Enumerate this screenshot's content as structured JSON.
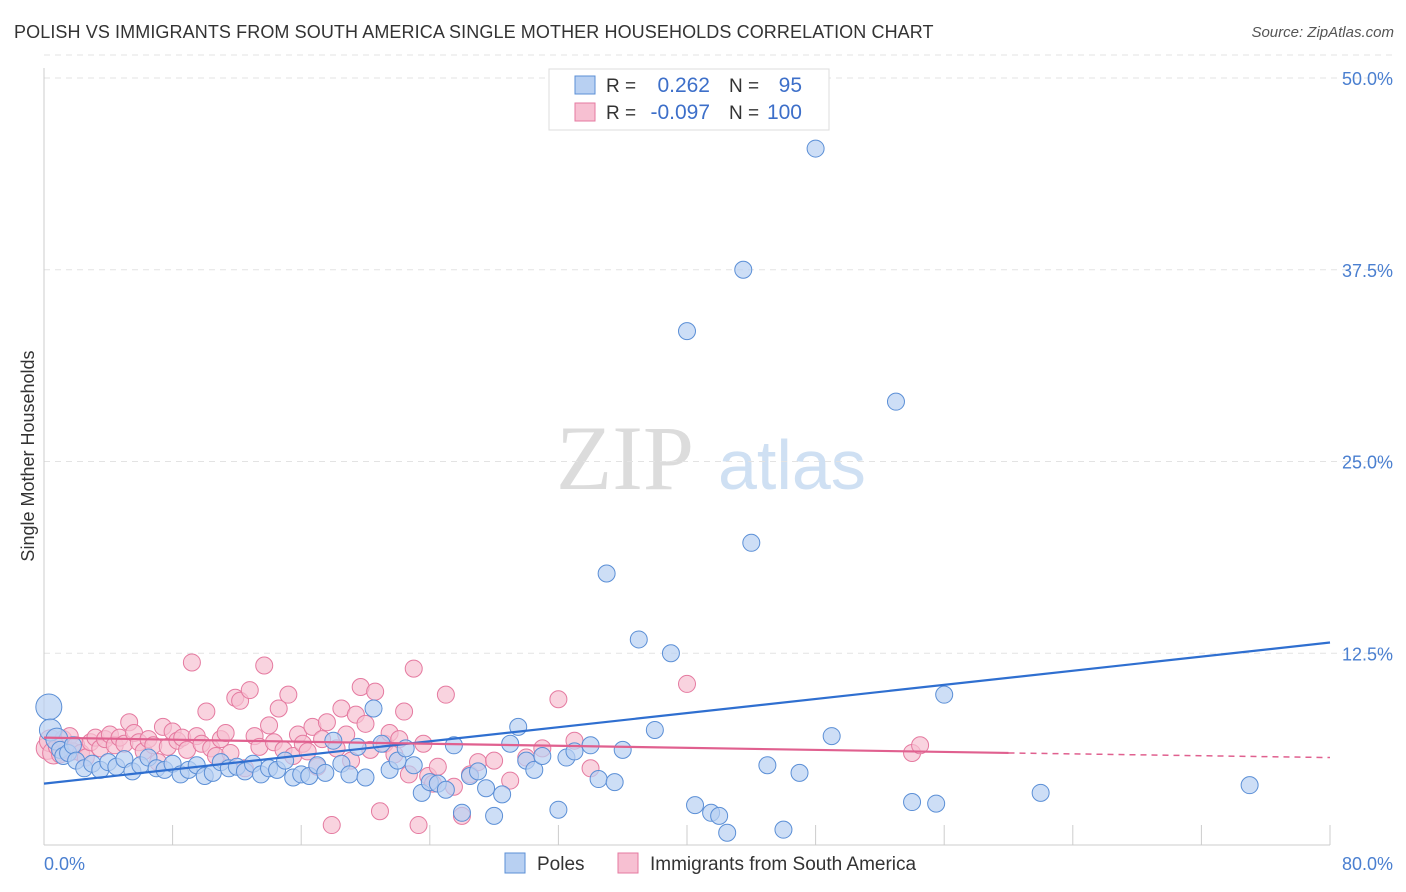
{
  "title": "POLISH VS IMMIGRANTS FROM SOUTH AMERICA SINGLE MOTHER HOUSEHOLDS CORRELATION CHART",
  "source": "Source: ZipAtlas.com",
  "watermark": {
    "zip": "ZIP",
    "atlas": "atlas"
  },
  "stats": [
    {
      "r_label": "R =",
      "r_value": "0.262",
      "n_label": "N =",
      "n_value": "95",
      "color": "#5b8fd6"
    },
    {
      "r_label": "R =",
      "r_value": "-0.097",
      "n_label": "N =",
      "n_value": "100",
      "color": "#e57aa0"
    }
  ],
  "chart_data": {
    "type": "scatter",
    "title": "POLISH VS IMMIGRANTS FROM SOUTH AMERICA SINGLE MOTHER HOUSEHOLDS CORRELATION CHART",
    "xlabel": "",
    "ylabel": "Single Mother Households",
    "xlim": [
      0,
      80
    ],
    "ylim": [
      0,
      52
    ],
    "x_tick_labels": [
      "0.0%",
      "80.0%"
    ],
    "y_ticks": [
      12.5,
      25.0,
      37.5,
      50.0
    ],
    "y_tick_labels": [
      "12.5%",
      "25.0%",
      "37.5%",
      "50.0%"
    ],
    "grid": "horizontal dashed",
    "legend_position": "bottom-center",
    "series": [
      {
        "name": "Poles",
        "color": "#5b8fd6",
        "fill": "#b8d0f2",
        "trend": {
          "x0": 0,
          "y0": 4.0,
          "x1": 80,
          "y1": 13.2,
          "dashed_from": 80
        },
        "points": [
          [
            0.3,
            9.0
          ],
          [
            0.4,
            7.5
          ],
          [
            0.8,
            6.9
          ],
          [
            1.0,
            6.2
          ],
          [
            1.2,
            5.8
          ],
          [
            1.5,
            6.0
          ],
          [
            1.8,
            6.5
          ],
          [
            2.0,
            5.5
          ],
          [
            2.5,
            5.0
          ],
          [
            3.0,
            5.3
          ],
          [
            3.5,
            4.9
          ],
          [
            4.0,
            5.4
          ],
          [
            4.5,
            5.1
          ],
          [
            5.0,
            5.6
          ],
          [
            5.5,
            4.8
          ],
          [
            6.0,
            5.2
          ],
          [
            6.5,
            5.7
          ],
          [
            7.0,
            5.0
          ],
          [
            7.5,
            4.9
          ],
          [
            8.0,
            5.3
          ],
          [
            8.5,
            4.6
          ],
          [
            9.0,
            4.9
          ],
          [
            9.5,
            5.2
          ],
          [
            10.0,
            4.5
          ],
          [
            10.5,
            4.7
          ],
          [
            11.0,
            5.4
          ],
          [
            11.5,
            5.0
          ],
          [
            12.0,
            5.1
          ],
          [
            12.5,
            4.8
          ],
          [
            13.0,
            5.3
          ],
          [
            13.5,
            4.6
          ],
          [
            14.0,
            5.0
          ],
          [
            14.5,
            4.9
          ],
          [
            15.0,
            5.5
          ],
          [
            15.5,
            4.4
          ],
          [
            16.0,
            4.6
          ],
          [
            16.5,
            4.5
          ],
          [
            17.0,
            5.2
          ],
          [
            17.5,
            4.7
          ],
          [
            18.0,
            6.8
          ],
          [
            18.5,
            5.3
          ],
          [
            19.0,
            4.6
          ],
          [
            19.5,
            6.4
          ],
          [
            20.0,
            4.4
          ],
          [
            20.5,
            8.9
          ],
          [
            21.0,
            6.6
          ],
          [
            21.5,
            4.9
          ],
          [
            22.0,
            5.5
          ],
          [
            22.5,
            6.3
          ],
          [
            23.0,
            5.2
          ],
          [
            23.5,
            3.4
          ],
          [
            24.0,
            4.1
          ],
          [
            24.5,
            4.0
          ],
          [
            25.0,
            3.6
          ],
          [
            25.5,
            6.5
          ],
          [
            26.0,
            2.1
          ],
          [
            26.5,
            4.5
          ],
          [
            27.0,
            4.8
          ],
          [
            27.5,
            3.7
          ],
          [
            28.0,
            1.9
          ],
          [
            28.5,
            3.3
          ],
          [
            29.0,
            6.6
          ],
          [
            29.5,
            7.7
          ],
          [
            30.0,
            5.5
          ],
          [
            30.5,
            4.9
          ],
          [
            31.0,
            5.8
          ],
          [
            32.0,
            2.3
          ],
          [
            32.5,
            5.7
          ],
          [
            33.0,
            6.1
          ],
          [
            34.0,
            6.5
          ],
          [
            34.5,
            4.3
          ],
          [
            35.0,
            17.7
          ],
          [
            35.5,
            4.1
          ],
          [
            36.0,
            6.2
          ],
          [
            37.0,
            13.4
          ],
          [
            38.0,
            7.5
          ],
          [
            39.0,
            12.5
          ],
          [
            40.0,
            33.5
          ],
          [
            40.5,
            2.6
          ],
          [
            41.5,
            2.1
          ],
          [
            42.0,
            1.9
          ],
          [
            42.5,
            0.8
          ],
          [
            43.5,
            37.5
          ],
          [
            44.0,
            19.7
          ],
          [
            45.0,
            5.2
          ],
          [
            46.0,
            1.0
          ],
          [
            47.0,
            4.7
          ],
          [
            48.0,
            45.4
          ],
          [
            49.0,
            7.1
          ],
          [
            53.0,
            28.9
          ],
          [
            54.0,
            2.8
          ],
          [
            55.5,
            2.7
          ],
          [
            56.0,
            9.8
          ],
          [
            62.0,
            3.4
          ],
          [
            75.0,
            3.9
          ]
        ]
      },
      {
        "name": "Immigrants from South America",
        "color": "#e57aa0",
        "fill": "#f7c0d2",
        "trend": {
          "x0": 0,
          "y0": 7.0,
          "x1": 60,
          "y1": 6.0,
          "dashed_from": 60,
          "x2": 80,
          "y2": 5.7
        },
        "points": [
          [
            0.2,
            6.3
          ],
          [
            0.4,
            6.8
          ],
          [
            0.6,
            6.0
          ],
          [
            0.8,
            6.4
          ],
          [
            1.0,
            5.9
          ],
          [
            1.2,
            6.9
          ],
          [
            1.4,
            6.2
          ],
          [
            1.6,
            7.1
          ],
          [
            1.8,
            6.1
          ],
          [
            2.0,
            6.5
          ],
          [
            2.3,
            6.0
          ],
          [
            2.6,
            5.7
          ],
          [
            2.9,
            6.7
          ],
          [
            3.2,
            7.0
          ],
          [
            3.5,
            6.3
          ],
          [
            3.8,
            6.9
          ],
          [
            4.1,
            7.2
          ],
          [
            4.4,
            6.5
          ],
          [
            4.7,
            7.0
          ],
          [
            5.0,
            6.6
          ],
          [
            5.3,
            8.0
          ],
          [
            5.6,
            7.3
          ],
          [
            5.9,
            6.7
          ],
          [
            6.2,
            6.1
          ],
          [
            6.5,
            6.9
          ],
          [
            6.8,
            6.5
          ],
          [
            7.1,
            5.4
          ],
          [
            7.4,
            7.7
          ],
          [
            7.7,
            6.4
          ],
          [
            8.0,
            7.4
          ],
          [
            8.3,
            6.8
          ],
          [
            8.6,
            7.0
          ],
          [
            8.9,
            6.2
          ],
          [
            9.2,
            11.9
          ],
          [
            9.5,
            7.1
          ],
          [
            9.8,
            6.6
          ],
          [
            10.1,
            8.7
          ],
          [
            10.4,
            6.3
          ],
          [
            10.7,
            5.8
          ],
          [
            11.0,
            6.9
          ],
          [
            11.3,
            7.3
          ],
          [
            11.6,
            6.0
          ],
          [
            11.9,
            9.6
          ],
          [
            12.2,
            9.4
          ],
          [
            12.5,
            5.0
          ],
          [
            12.8,
            10.1
          ],
          [
            13.1,
            7.1
          ],
          [
            13.4,
            6.4
          ],
          [
            13.7,
            11.7
          ],
          [
            14.0,
            7.8
          ],
          [
            14.3,
            6.7
          ],
          [
            14.6,
            8.9
          ],
          [
            14.9,
            6.2
          ],
          [
            15.2,
            9.8
          ],
          [
            15.5,
            5.8
          ],
          [
            15.8,
            7.2
          ],
          [
            16.1,
            6.6
          ],
          [
            16.4,
            6.1
          ],
          [
            16.7,
            7.7
          ],
          [
            17.0,
            5.1
          ],
          [
            17.3,
            6.9
          ],
          [
            17.6,
            8.0
          ],
          [
            17.9,
            1.3
          ],
          [
            18.2,
            6.3
          ],
          [
            18.5,
            8.9
          ],
          [
            18.8,
            7.2
          ],
          [
            19.1,
            5.5
          ],
          [
            19.4,
            8.5
          ],
          [
            19.7,
            10.3
          ],
          [
            20.0,
            7.9
          ],
          [
            20.3,
            6.2
          ],
          [
            20.6,
            10.0
          ],
          [
            20.9,
            2.2
          ],
          [
            21.2,
            6.6
          ],
          [
            21.5,
            7.3
          ],
          [
            21.8,
            5.9
          ],
          [
            22.1,
            6.9
          ],
          [
            22.4,
            8.7
          ],
          [
            22.7,
            4.6
          ],
          [
            23.0,
            11.5
          ],
          [
            23.3,
            1.3
          ],
          [
            23.6,
            6.6
          ],
          [
            23.9,
            4.5
          ],
          [
            24.2,
            4.0
          ],
          [
            24.5,
            5.1
          ],
          [
            25.0,
            9.8
          ],
          [
            25.5,
            3.8
          ],
          [
            26.0,
            1.9
          ],
          [
            26.5,
            4.6
          ],
          [
            27.0,
            5.4
          ],
          [
            28.0,
            5.5
          ],
          [
            29.0,
            4.2
          ],
          [
            30.0,
            5.7
          ],
          [
            31.0,
            6.3
          ],
          [
            32.0,
            9.5
          ],
          [
            33.0,
            6.8
          ],
          [
            34.0,
            5.0
          ],
          [
            40.0,
            10.5
          ],
          [
            54.0,
            6.0
          ],
          [
            54.5,
            6.5
          ]
        ]
      }
    ]
  },
  "legend": [
    {
      "label": "Poles",
      "color": "#5b8fd6",
      "fill": "#b8d0f2"
    },
    {
      "label": "Immigrants from South America",
      "color": "#e57aa0",
      "fill": "#f7c0d2"
    }
  ]
}
